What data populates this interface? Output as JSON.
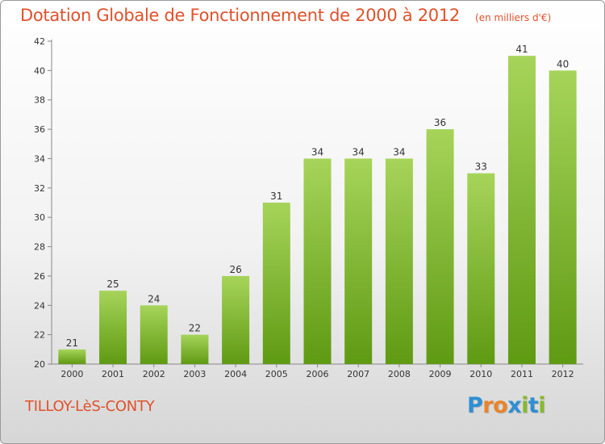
{
  "title": "Dotation Globale de Fonctionnement de 2000 à 2012",
  "subtitle": "(en milliers d'€)",
  "commune": "TILLOY-LèS-CONTY",
  "logo": {
    "letters": [
      "P",
      "r",
      "o",
      "x",
      "i",
      "t",
      "i"
    ],
    "colors": [
      "#2e8fd3",
      "#e9842c",
      "#e9842c",
      "#2e8fd3",
      "#86b92d",
      "#2e8fd3",
      "#86b92d"
    ]
  },
  "colors": {
    "title": "#e0512b",
    "bar_light": "#a6d45a",
    "bar_dark": "#5f9a13"
  },
  "chart_data": {
    "type": "bar",
    "title": "Dotation Globale de Fonctionnement de 2000 à 2012",
    "subtitle": "(en milliers d'€)",
    "categories": [
      "2000",
      "2001",
      "2002",
      "2003",
      "2004",
      "2005",
      "2006",
      "2007",
      "2008",
      "2009",
      "2010",
      "2011",
      "2012"
    ],
    "values": [
      21,
      25,
      24,
      22,
      26,
      31,
      34,
      34,
      34,
      36,
      33,
      41,
      40
    ],
    "ylim": [
      20,
      42
    ],
    "yticks": [
      20,
      22,
      24,
      26,
      28,
      30,
      32,
      34,
      36,
      38,
      40,
      42
    ],
    "grid": false,
    "data_labels": true
  }
}
